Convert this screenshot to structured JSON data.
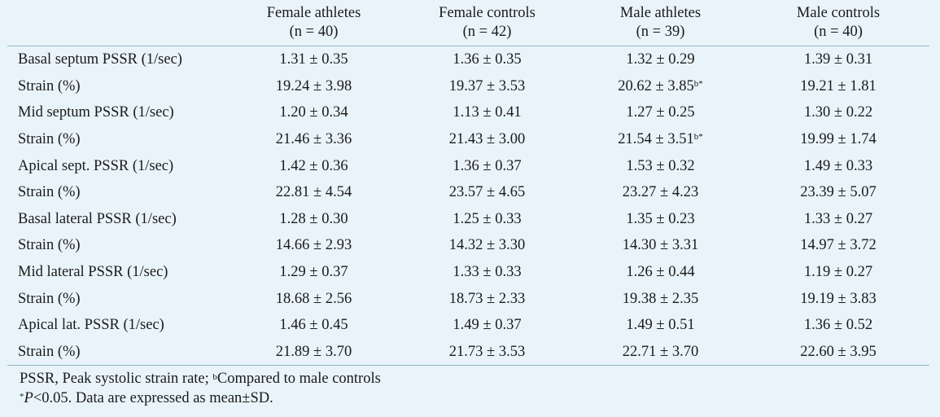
{
  "columns": [
    {
      "line1": "",
      "line2": ""
    },
    {
      "line1": "Female athletes",
      "line2": "(n = 40)"
    },
    {
      "line1": "Female controls",
      "line2": "(n = 42)"
    },
    {
      "line1": "Male athletes",
      "line2": "(n = 39)"
    },
    {
      "line1": "Male controls",
      "line2": "(n = 40)"
    }
  ],
  "rows": [
    {
      "label": "Basal septum PSSR (1/sec)",
      "values": [
        "1.31 ± 0.35",
        "1.36 ± 0.35",
        "1.32 ± 0.29",
        "1.39 ± 0.31"
      ],
      "sup": [
        "",
        "",
        "",
        ""
      ]
    },
    {
      "label": "Strain (%)",
      "values": [
        "19.24 ± 3.98",
        "19.37 ± 3.53",
        "20.62 ± 3.85",
        "19.21 ± 1.81"
      ],
      "sup": [
        "",
        "",
        "b*",
        ""
      ]
    },
    {
      "label": "Mid septum PSSR (1/sec)",
      "values": [
        "1.20 ± 0.34",
        "1.13 ± 0.41",
        "1.27 ± 0.25",
        "1.30 ± 0.22"
      ],
      "sup": [
        "",
        "",
        "",
        ""
      ]
    },
    {
      "label": "Strain (%)",
      "values": [
        "21.46 ± 3.36",
        "21.43 ± 3.00",
        "21.54 ± 3.51",
        "19.99 ± 1.74"
      ],
      "sup": [
        "",
        "",
        "b*",
        ""
      ]
    },
    {
      "label": "Apical sept. PSSR (1/sec)",
      "values": [
        "1.42 ± 0.36",
        "1.36 ± 0.37",
        "1.53 ± 0.32",
        "1.49 ± 0.33"
      ],
      "sup": [
        "",
        "",
        "",
        ""
      ]
    },
    {
      "label": "Strain (%)",
      "values": [
        "22.81 ± 4.54",
        "23.57 ± 4.65",
        "23.27 ± 4.23",
        "23.39 ± 5.07"
      ],
      "sup": [
        "",
        "",
        "",
        ""
      ]
    },
    {
      "label": "Basal lateral PSSR (1/sec)",
      "values": [
        "1.28 ± 0.30",
        "1.25 ± 0.33",
        "1.35 ± 0.23",
        "1.33 ± 0.27"
      ],
      "sup": [
        "",
        "",
        "",
        ""
      ]
    },
    {
      "label": "Strain (%)",
      "values": [
        "14.66 ± 2.93",
        "14.32 ± 3.30",
        "14.30 ± 3.31",
        "14.97 ± 3.72"
      ],
      "sup": [
        "",
        "",
        "",
        ""
      ]
    },
    {
      "label": "Mid lateral PSSR (1/sec)",
      "values": [
        "1.29 ± 0.37",
        "1.33 ± 0.33",
        "1.26 ± 0.44",
        "1.19 ± 0.27"
      ],
      "sup": [
        "",
        "",
        "",
        ""
      ]
    },
    {
      "label": "Strain (%)",
      "values": [
        "18.68 ± 2.56",
        "18.73 ± 2.33",
        "19.38 ± 2.35",
        "19.19 ± 3.83"
      ],
      "sup": [
        "",
        "",
        "",
        ""
      ]
    },
    {
      "label": "Apical lat.  PSSR (1/sec)",
      "values": [
        "1.46 ± 0.45",
        "1.49 ± 0.37",
        "1.49 ± 0.51",
        "1.36 ± 0.52"
      ],
      "sup": [
        "",
        "",
        "",
        ""
      ]
    },
    {
      "label": "Strain (%)",
      "values": [
        "21.89 ± 3.70",
        "21.73 ± 3.53",
        "22.71 ± 3.70",
        "22.60 ± 3.95"
      ],
      "sup": [
        "",
        "",
        "",
        ""
      ]
    }
  ],
  "footnotes": {
    "line1_pre": "PSSR, Peak systolic strain rate; ",
    "line1_sup": "b",
    "line1_post": "Compared to male controls",
    "line2_sup": "*",
    "line2_italic": "P",
    "line2_post": "<0.05. Data are expressed as mean±SD."
  },
  "colors": {
    "background": "#e9f4fa",
    "rule": "#8fb8cc",
    "text": "#1a1a1a"
  }
}
